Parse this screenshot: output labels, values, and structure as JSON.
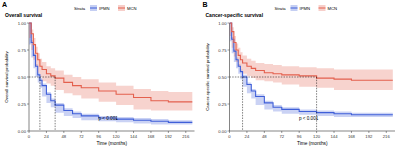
{
  "chart_data": [
    {
      "type": "line",
      "panel": "A",
      "title": "Overall survival",
      "x_label": "Time (months)",
      "y_label": "Overall survival probability",
      "legend_title": "Strata",
      "legend": "top",
      "line_style": "step",
      "annotation": "p < 0.001",
      "median_level": 0.5,
      "xlim": [
        0,
        228
      ],
      "ylim": [
        0,
        1
      ],
      "xticks": [
        0,
        24,
        48,
        72,
        96,
        120,
        144,
        168,
        192,
        216
      ],
      "yticks": [
        {
          "value": 0,
          "label": "0.00"
        },
        {
          "value": 0.25,
          "label": "0.25"
        },
        {
          "value": 0.5,
          "label": "0.50"
        },
        {
          "value": 0.75,
          "label": "0.75"
        },
        {
          "value": 1,
          "label": "1.00"
        }
      ],
      "x": [
        0,
        3,
        6,
        9,
        12,
        15,
        18,
        24,
        30,
        36,
        48,
        60,
        72,
        96,
        120,
        144,
        168,
        192,
        216,
        225
      ],
      "series": [
        {
          "name": "IPMN",
          "color": "#3f5fd8",
          "median": 15,
          "values": [
            1,
            0.82,
            0.7,
            0.6,
            0.52,
            0.47,
            0.42,
            0.34,
            0.28,
            0.24,
            0.19,
            0.16,
            0.14,
            0.12,
            0.11,
            0.1,
            0.09,
            0.08,
            0.08,
            0.08
          ],
          "lower": [
            1,
            0.8,
            0.68,
            0.58,
            0.5,
            0.45,
            0.4,
            0.32,
            0.26,
            0.22,
            0.17,
            0.14,
            0.12,
            0.1,
            0.09,
            0.08,
            0.07,
            0.06,
            0.06,
            0.06
          ],
          "upper": [
            1,
            0.84,
            0.72,
            0.62,
            0.54,
            0.49,
            0.44,
            0.36,
            0.3,
            0.26,
            0.21,
            0.18,
            0.16,
            0.14,
            0.13,
            0.12,
            0.11,
            0.1,
            0.1,
            0.1
          ]
        },
        {
          "name": "MCN",
          "color": "#e4604e",
          "median": 36,
          "values": [
            1,
            0.9,
            0.8,
            0.72,
            0.66,
            0.6,
            0.57,
            0.53,
            0.51,
            0.49,
            0.45,
            0.42,
            0.4,
            0.37,
            0.34,
            0.31,
            0.28,
            0.27,
            0.27,
            0.27
          ],
          "lower": [
            1,
            0.86,
            0.75,
            0.66,
            0.6,
            0.54,
            0.5,
            0.46,
            0.44,
            0.42,
            0.38,
            0.35,
            0.33,
            0.3,
            0.27,
            0.24,
            0.2,
            0.19,
            0.19,
            0.19
          ],
          "upper": [
            1,
            0.94,
            0.86,
            0.78,
            0.72,
            0.67,
            0.64,
            0.6,
            0.58,
            0.56,
            0.52,
            0.5,
            0.48,
            0.45,
            0.42,
            0.39,
            0.37,
            0.36,
            0.36,
            0.36
          ]
        }
      ]
    },
    {
      "type": "line",
      "panel": "B",
      "title": "Cancer-specific survival",
      "x_label": "Time (months)",
      "y_label": "Cancer-specific survival probability",
      "legend_title": "Strata",
      "legend": "top",
      "line_style": "step",
      "annotation": "p < 0.001",
      "median_level": 0.5,
      "xlim": [
        0,
        228
      ],
      "ylim": [
        0,
        1
      ],
      "xticks": [
        0,
        24,
        48,
        72,
        96,
        120,
        144,
        168,
        192,
        216
      ],
      "yticks": [
        {
          "value": 0,
          "label": "0.00"
        },
        {
          "value": 0.25,
          "label": "0.25"
        },
        {
          "value": 0.5,
          "label": "0.50"
        },
        {
          "value": 0.75,
          "label": "0.75"
        },
        {
          "value": 1,
          "label": "1.00"
        }
      ],
      "x": [
        0,
        3,
        6,
        9,
        12,
        15,
        18,
        24,
        30,
        36,
        48,
        60,
        72,
        96,
        120,
        144,
        168,
        192,
        216,
        225
      ],
      "series": [
        {
          "name": "IPMN",
          "color": "#3f5fd8",
          "median": 18,
          "values": [
            1,
            0.85,
            0.74,
            0.66,
            0.6,
            0.55,
            0.5,
            0.43,
            0.37,
            0.32,
            0.26,
            0.22,
            0.2,
            0.18,
            0.17,
            0.16,
            0.15,
            0.15,
            0.15,
            0.15
          ],
          "lower": [
            1,
            0.83,
            0.72,
            0.64,
            0.58,
            0.53,
            0.48,
            0.41,
            0.35,
            0.3,
            0.24,
            0.2,
            0.18,
            0.16,
            0.15,
            0.14,
            0.13,
            0.13,
            0.13,
            0.13
          ],
          "upper": [
            1,
            0.87,
            0.76,
            0.68,
            0.62,
            0.57,
            0.52,
            0.45,
            0.39,
            0.34,
            0.28,
            0.24,
            0.22,
            0.2,
            0.19,
            0.18,
            0.17,
            0.17,
            0.17,
            0.17
          ]
        },
        {
          "name": "MCN",
          "color": "#e4604e",
          "median": 120,
          "values": [
            1,
            0.92,
            0.82,
            0.75,
            0.7,
            0.66,
            0.63,
            0.6,
            0.58,
            0.56,
            0.54,
            0.53,
            0.52,
            0.51,
            0.49,
            0.48,
            0.47,
            0.47,
            0.47,
            0.47
          ],
          "lower": [
            1,
            0.88,
            0.77,
            0.69,
            0.64,
            0.6,
            0.56,
            0.53,
            0.51,
            0.49,
            0.47,
            0.46,
            0.45,
            0.43,
            0.41,
            0.4,
            0.38,
            0.38,
            0.38,
            0.38
          ],
          "upper": [
            1,
            0.96,
            0.88,
            0.81,
            0.77,
            0.73,
            0.7,
            0.67,
            0.65,
            0.63,
            0.62,
            0.61,
            0.6,
            0.59,
            0.58,
            0.57,
            0.57,
            0.57,
            0.57,
            0.57
          ]
        }
      ]
    }
  ]
}
